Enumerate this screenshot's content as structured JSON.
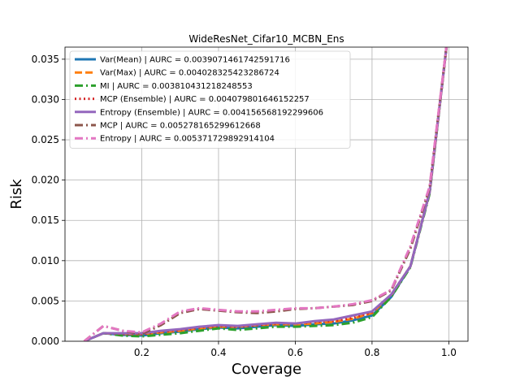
{
  "chart_data": {
    "type": "line",
    "title": "WideResNet_Cifar10_MCBN_Ens",
    "xlabel": "Coverage",
    "ylabel": "Risk",
    "xlim": [
      0.0,
      1.05
    ],
    "ylim": [
      0.0,
      0.0365
    ],
    "xticks": [
      0.2,
      0.4,
      0.6,
      0.8,
      1.0
    ],
    "xtick_labels": [
      "0.2",
      "0.4",
      "0.6",
      "0.8",
      "1.0"
    ],
    "yticks": [
      0.0,
      0.005,
      0.01,
      0.015,
      0.02,
      0.025,
      0.03,
      0.035
    ],
    "ytick_labels": [
      "0.000",
      "0.005",
      "0.010",
      "0.015",
      "0.020",
      "0.025",
      "0.030",
      "0.035"
    ],
    "grid": true,
    "legend_position": "upper-left",
    "series": [
      {
        "name": "Var(Mean) | AURC = 0.0039071461742591716",
        "color": "#1f77b4",
        "dash": "solid",
        "x": [
          0.05,
          0.1,
          0.15,
          0.2,
          0.25,
          0.3,
          0.35,
          0.4,
          0.45,
          0.5,
          0.55,
          0.6,
          0.65,
          0.7,
          0.75,
          0.8,
          0.85,
          0.9,
          0.95,
          1.0
        ],
        "y": [
          0.0,
          0.001,
          0.0008,
          0.0007,
          0.001,
          0.0012,
          0.0015,
          0.0017,
          0.0016,
          0.0018,
          0.002,
          0.0019,
          0.0021,
          0.0022,
          0.0026,
          0.0032,
          0.0055,
          0.0093,
          0.0185,
          0.039
        ]
      },
      {
        "name": "Var(Max) | AURC = 0.004028325423286724",
        "color": "#ff7f0e",
        "dash": "dashed",
        "x": [
          0.05,
          0.1,
          0.15,
          0.2,
          0.25,
          0.3,
          0.35,
          0.4,
          0.45,
          0.5,
          0.55,
          0.6,
          0.65,
          0.7,
          0.75,
          0.8,
          0.85,
          0.9,
          0.95,
          1.0
        ],
        "y": [
          0.0,
          0.001,
          0.0009,
          0.0009,
          0.0011,
          0.0013,
          0.0016,
          0.0018,
          0.0018,
          0.002,
          0.0021,
          0.0021,
          0.0022,
          0.0024,
          0.0028,
          0.0035,
          0.0057,
          0.0093,
          0.0185,
          0.039
        ]
      },
      {
        "name": "MI | AURC = 0.003810431218248553",
        "color": "#2ca02c",
        "dash": "dashdot",
        "x": [
          0.05,
          0.1,
          0.15,
          0.2,
          0.25,
          0.3,
          0.35,
          0.4,
          0.45,
          0.5,
          0.55,
          0.6,
          0.65,
          0.7,
          0.75,
          0.8,
          0.85,
          0.9,
          0.95,
          1.0
        ],
        "y": [
          0.0,
          0.001,
          0.0007,
          0.0006,
          0.0008,
          0.001,
          0.0013,
          0.0016,
          0.0014,
          0.0016,
          0.0018,
          0.0018,
          0.0019,
          0.002,
          0.0023,
          0.003,
          0.0055,
          0.0092,
          0.0183,
          0.039
        ]
      },
      {
        "name": "MCP (Ensemble) | AURC = 0.004079801646152257",
        "color": "#d62728",
        "dash": "dotted",
        "x": [
          0.05,
          0.1,
          0.15,
          0.2,
          0.25,
          0.3,
          0.35,
          0.4,
          0.45,
          0.5,
          0.55,
          0.6,
          0.65,
          0.7,
          0.75,
          0.8,
          0.85,
          0.9,
          0.95,
          1.0
        ],
        "y": [
          0.0,
          0.001,
          0.0009,
          0.0009,
          0.0012,
          0.0014,
          0.0017,
          0.0019,
          0.0018,
          0.002,
          0.0022,
          0.0022,
          0.0024,
          0.0025,
          0.0029,
          0.0036,
          0.0058,
          0.0093,
          0.0185,
          0.039
        ]
      },
      {
        "name": "Entropy (Ensemble) | AURC = 0.004156568192299606",
        "color": "#9467bd",
        "dash": "solid",
        "x": [
          0.05,
          0.1,
          0.15,
          0.2,
          0.25,
          0.3,
          0.35,
          0.4,
          0.45,
          0.5,
          0.55,
          0.6,
          0.65,
          0.7,
          0.75,
          0.8,
          0.85,
          0.9,
          0.95,
          1.0
        ],
        "y": [
          0.0,
          0.001,
          0.001,
          0.001,
          0.0013,
          0.0015,
          0.0018,
          0.002,
          0.0019,
          0.0021,
          0.0023,
          0.0022,
          0.0025,
          0.0027,
          0.0032,
          0.0037,
          0.0058,
          0.0093,
          0.0185,
          0.039
        ]
      },
      {
        "name": "MCP | AURC = 0.005278165299612668",
        "color": "#8c564b",
        "dash": "dashdot",
        "x": [
          0.05,
          0.1,
          0.15,
          0.2,
          0.25,
          0.3,
          0.35,
          0.4,
          0.45,
          0.5,
          0.55,
          0.6,
          0.65,
          0.7,
          0.75,
          0.8,
          0.85,
          0.9,
          0.95,
          1.0
        ],
        "y": [
          0.0,
          0.0019,
          0.0013,
          0.0009,
          0.002,
          0.0035,
          0.004,
          0.0038,
          0.0036,
          0.0035,
          0.0037,
          0.004,
          0.0041,
          0.0043,
          0.0045,
          0.005,
          0.0063,
          0.0115,
          0.019,
          0.039
        ]
      },
      {
        "name": "Entropy | AURC = 0.005371729892914104",
        "color": "#e377c2",
        "dash": "dashdot",
        "x": [
          0.05,
          0.1,
          0.15,
          0.2,
          0.25,
          0.3,
          0.35,
          0.4,
          0.45,
          0.5,
          0.55,
          0.6,
          0.65,
          0.7,
          0.75,
          0.8,
          0.85,
          0.9,
          0.95,
          1.0
        ],
        "y": [
          0.0,
          0.0019,
          0.0013,
          0.0011,
          0.0022,
          0.0037,
          0.0041,
          0.0039,
          0.0037,
          0.0037,
          0.0039,
          0.0041,
          0.0041,
          0.0043,
          0.0046,
          0.0051,
          0.0064,
          0.0118,
          0.0192,
          0.039
        ]
      }
    ]
  }
}
